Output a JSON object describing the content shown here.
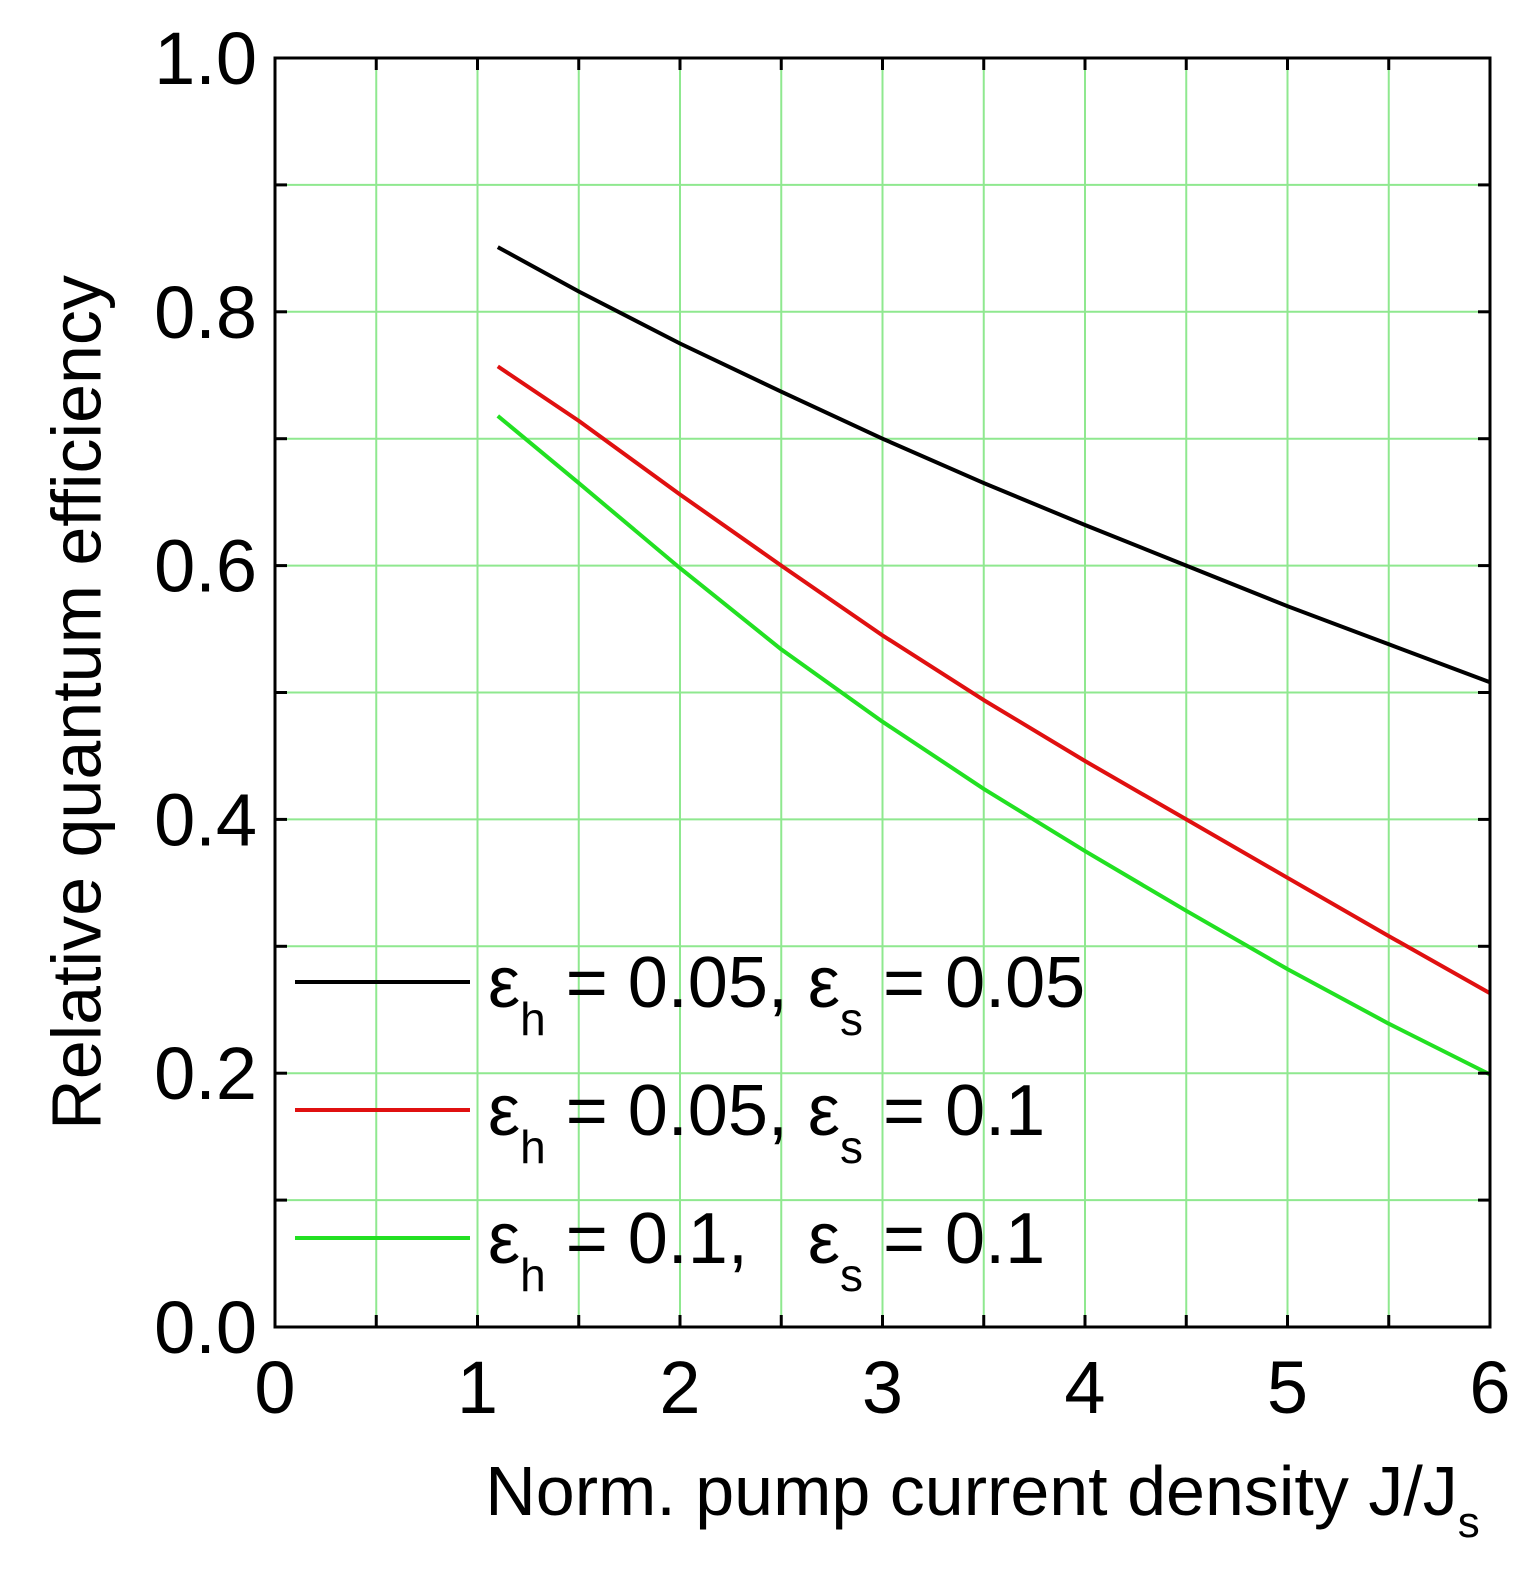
{
  "colors": {
    "grid": "#8fe88f",
    "axis": "#000000",
    "background": "#ffffff"
  },
  "chart_data": {
    "type": "line",
    "title": "",
    "xlabel": "Norm. pump current density J/J",
    "xlabel_sub": "s",
    "ylabel": "Relative quantum efficiency",
    "xlim": [
      0,
      6
    ],
    "ylim": [
      0.0,
      1.0
    ],
    "xticks": [
      0,
      1,
      2,
      3,
      4,
      5,
      6
    ],
    "xtick_labels": [
      "0",
      "1",
      "2",
      "3",
      "4",
      "5",
      "6"
    ],
    "yticks": [
      0.0,
      0.2,
      0.4,
      0.6,
      0.8,
      1.0
    ],
    "ytick_labels": [
      "0.0",
      "0.2",
      "0.4",
      "0.6",
      "0.8",
      "1.0"
    ],
    "grid": true,
    "grid_x_step": 0.5,
    "grid_y_step": 0.1,
    "legend_position": "bottom-left",
    "x": [
      1.1,
      1.5,
      2.0,
      2.5,
      3.0,
      3.5,
      4.0,
      4.5,
      5.0,
      5.5,
      6.0
    ],
    "series": [
      {
        "name": "εh = 0.05, εs = 0.05",
        "color": "#000000",
        "legend": {
          "eps1": "ε",
          "sub1": "h",
          "mid": " = 0.05, ",
          "eps2": "ε",
          "sub2": "s",
          "tail": " = 0.05"
        },
        "values": [
          0.851,
          0.816,
          0.775,
          0.737,
          0.7,
          0.665,
          0.632,
          0.6,
          0.568,
          0.538,
          0.508
        ]
      },
      {
        "name": "εh = 0.05, εs = 0.1",
        "color": "#e01010",
        "legend": {
          "eps1": "ε",
          "sub1": "h",
          "mid": " = 0.05, ",
          "eps2": "ε",
          "sub2": "s",
          "tail": " = 0.1"
        },
        "values": [
          0.757,
          0.714,
          0.656,
          0.6,
          0.545,
          0.494,
          0.446,
          0.4,
          0.354,
          0.308,
          0.263
        ]
      },
      {
        "name": "εh = 0.1, εs = 0.1",
        "color": "#22e022",
        "legend": {
          "eps1": "ε",
          "sub1": "h",
          "mid": " = 0.1,   ",
          "eps2": "ε",
          "sub2": "s",
          "tail": " = 0.1"
        },
        "values": [
          0.718,
          0.665,
          0.598,
          0.534,
          0.477,
          0.424,
          0.375,
          0.328,
          0.282,
          0.239,
          0.199
        ]
      }
    ]
  }
}
